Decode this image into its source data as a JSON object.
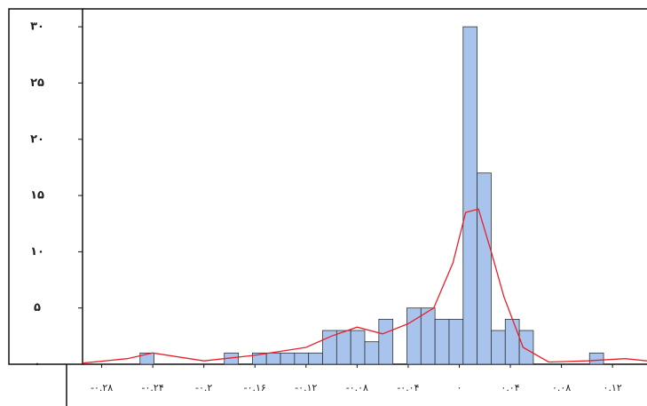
{
  "chart_data": {
    "type": "histogram",
    "bins": [
      -0.25,
      -0.239,
      -0.228,
      -0.217,
      -0.206,
      -0.195,
      -0.184,
      -0.173,
      -0.162,
      -0.151,
      -0.14,
      -0.129,
      -0.118,
      -0.107,
      -0.096,
      -0.085,
      -0.074,
      -0.063,
      -0.052,
      -0.041,
      -0.03,
      -0.019,
      -0.008,
      0.003,
      0.014,
      0.025,
      0.036,
      0.047,
      0.058,
      0.069,
      0.08,
      0.091,
      0.102,
      0.113
    ],
    "values": [
      1,
      0,
      0,
      0,
      0,
      0,
      1,
      0,
      1,
      1,
      1,
      1,
      1,
      3,
      3,
      3,
      2,
      4,
      0,
      5,
      5,
      4,
      4,
      30,
      17,
      3,
      4,
      3,
      0,
      0,
      0,
      0,
      1
    ],
    "color": "#a9c4ec",
    "curve": {
      "color": "#e8202a",
      "x": [
        -0.295,
        -0.26,
        -0.24,
        -0.2,
        -0.16,
        -0.12,
        -0.1,
        -0.08,
        -0.06,
        -0.04,
        -0.02,
        -0.005,
        0.005,
        0.015,
        0.025,
        0.035,
        0.05,
        0.07,
        0.1,
        0.13,
        0.147
      ],
      "values": [
        0.1,
        0.5,
        1,
        0.3,
        0.8,
        1.5,
        2.5,
        3.3,
        2.7,
        3.6,
        5,
        9,
        13.5,
        13.8,
        10,
        6,
        1.5,
        0.2,
        0.3,
        0.5,
        0.3
      ]
    },
    "xlim": [
      -0.295,
      0.147
    ],
    "ylim": [
      0,
      30.8
    ],
    "xticks": [
      {
        "value": -0.28,
        "label": "-۰.۲۸"
      },
      {
        "value": -0.24,
        "label": "-۰.۲۴"
      },
      {
        "value": -0.2,
        "label": "-۰.۲"
      },
      {
        "value": -0.16,
        "label": "-۰.۱۶"
      },
      {
        "value": -0.12,
        "label": "-۰.۱۲"
      },
      {
        "value": -0.08,
        "label": "-۰.۰۸"
      },
      {
        "value": -0.04,
        "label": "-۰.۰۴"
      },
      {
        "value": 0,
        "label": "۰"
      },
      {
        "value": 0.04,
        "label": "۰.۰۴"
      },
      {
        "value": 0.08,
        "label": "۰.۰۸"
      },
      {
        "value": 0.12,
        "label": "۰.۱۲"
      }
    ],
    "yticks": [
      {
        "value": 0,
        "label": "۰"
      },
      {
        "value": 5,
        "label": "۵"
      },
      {
        "value": 10,
        "label": "۱۰"
      },
      {
        "value": 15,
        "label": "۱۵"
      },
      {
        "value": 20,
        "label": "۲۰"
      },
      {
        "value": 25,
        "label": "۲۵"
      },
      {
        "value": 30,
        "label": "۳۰"
      }
    ]
  }
}
